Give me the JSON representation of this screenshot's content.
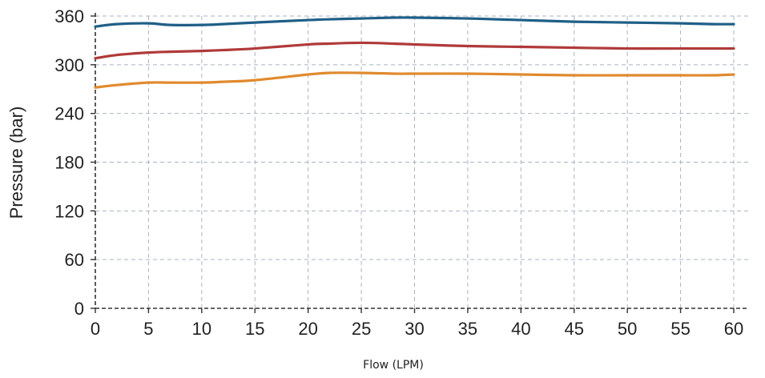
{
  "chart_data": {
    "type": "line",
    "xlabel": "Flow (LPM)",
    "ylabel": "Pressure (bar)",
    "xlim": [
      0,
      60
    ],
    "ylim": [
      0,
      360
    ],
    "xticks": [
      "0",
      "5",
      "10",
      "15",
      "20",
      "25",
      "30",
      "35",
      "40",
      "45",
      "50",
      "55",
      "60"
    ],
    "yticks": [
      "0",
      "60",
      "120",
      "180",
      "240",
      "300",
      "360"
    ],
    "grid": true,
    "x": [
      0,
      2,
      5,
      7,
      10,
      12,
      15,
      20,
      22,
      25,
      28,
      30,
      35,
      40,
      45,
      50,
      55,
      58,
      60
    ],
    "series": [
      {
        "color": "#1f5f87",
        "values": [
          347,
          350,
          351,
          349,
          349,
          350,
          352,
          355,
          356,
          357,
          358,
          358,
          357,
          355,
          353,
          352,
          351,
          350,
          350
        ]
      },
      {
        "color": "#b03a3a",
        "values": [
          308,
          312,
          315,
          316,
          317,
          318,
          320,
          325,
          326,
          327,
          326,
          325,
          323,
          322,
          321,
          320,
          320,
          320,
          320
        ]
      },
      {
        "color": "#e08a2e",
        "values": [
          272,
          275,
          278,
          278,
          278,
          279,
          281,
          288,
          290,
          290,
          289,
          289,
          289,
          288,
          287,
          287,
          287,
          287,
          288
        ]
      }
    ]
  }
}
